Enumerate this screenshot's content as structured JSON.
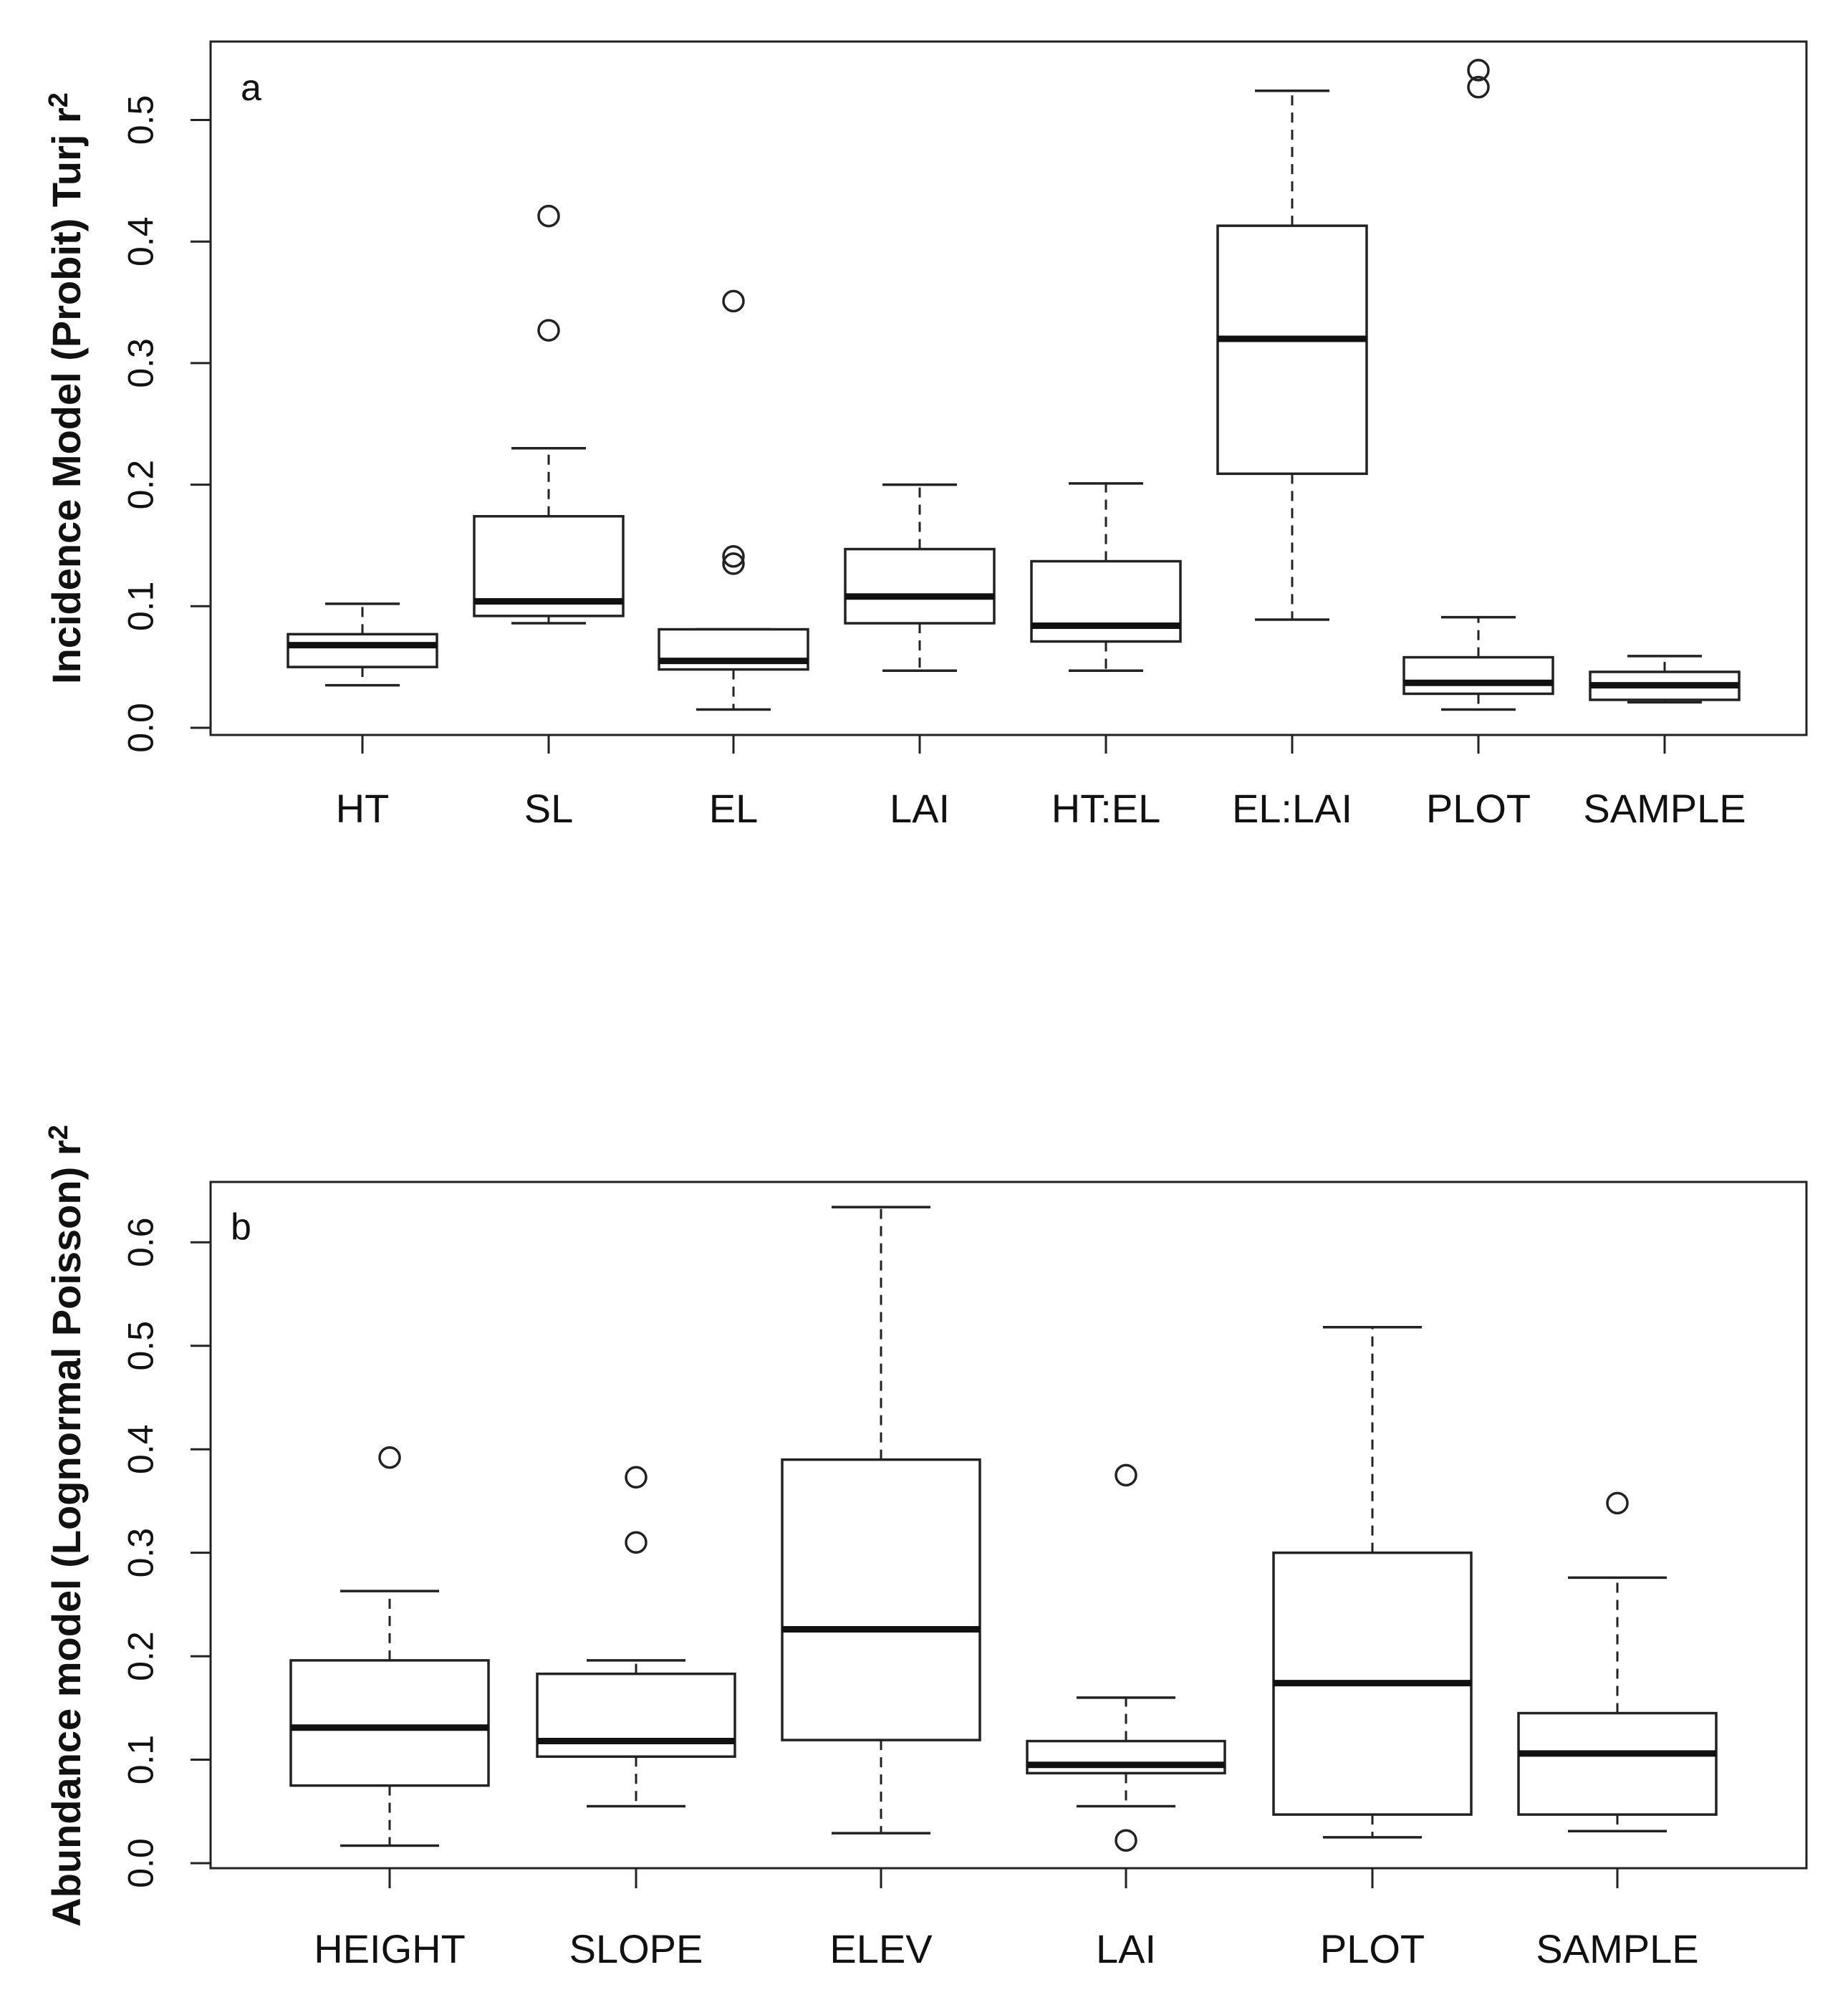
{
  "chart_data": [
    {
      "type": "boxplot",
      "panel_label": "a",
      "ylabel": "Incidence Model (Probit) Turj r",
      "ylabel_superscript": "2",
      "ylim": [
        0.0,
        0.56
      ],
      "yticks": [
        "0.0",
        "0.1",
        "0.2",
        "0.3",
        "0.4",
        "0.5"
      ],
      "categories": [
        "HT",
        "SL",
        "EL",
        "LAI",
        "HT:EL",
        "EL:LAI",
        "PLOT",
        "SAMPLE"
      ],
      "boxes": [
        {
          "min": 0.035,
          "q1": 0.05,
          "median": 0.068,
          "q3": 0.077,
          "max": 0.102,
          "outliers": []
        },
        {
          "min": 0.086,
          "q1": 0.092,
          "median": 0.104,
          "q3": 0.174,
          "max": 0.23,
          "outliers": [
            0.327,
            0.421
          ]
        },
        {
          "min": 0.015,
          "q1": 0.048,
          "median": 0.055,
          "q3": 0.081,
          "max": 0.081,
          "outliers": [
            0.135,
            0.141,
            0.351
          ]
        },
        {
          "min": 0.047,
          "q1": 0.086,
          "median": 0.108,
          "q3": 0.147,
          "max": 0.2,
          "outliers": []
        },
        {
          "min": 0.047,
          "q1": 0.071,
          "median": 0.084,
          "q3": 0.137,
          "max": 0.201,
          "outliers": []
        },
        {
          "min": 0.089,
          "q1": 0.209,
          "median": 0.32,
          "q3": 0.413,
          "max": 0.524,
          "outliers": []
        },
        {
          "min": 0.015,
          "q1": 0.028,
          "median": 0.037,
          "q3": 0.058,
          "max": 0.091,
          "outliers": [
            0.527,
            0.541
          ]
        },
        {
          "min": 0.021,
          "q1": 0.023,
          "median": 0.035,
          "q3": 0.046,
          "max": 0.059,
          "outliers": []
        }
      ]
    },
    {
      "type": "boxplot",
      "panel_label": "b",
      "ylabel": "Abundance model (Lognormal Poisson) r",
      "ylabel_superscript": "2",
      "ylim": [
        -0.005,
        0.655
      ],
      "yticks": [
        "0.0",
        "0.1",
        "0.2",
        "0.3",
        "0.4",
        "0.5",
        "0.6"
      ],
      "categories": [
        "HEIGHT",
        "SLOPE",
        "ELEV",
        "LAI",
        "PLOT",
        "SAMPLE"
      ],
      "boxes": [
        {
          "min": 0.017,
          "q1": 0.075,
          "median": 0.131,
          "q3": 0.196,
          "max": 0.263,
          "outliers": [
            0.392
          ]
        },
        {
          "min": 0.055,
          "q1": 0.103,
          "median": 0.118,
          "q3": 0.183,
          "max": 0.196,
          "outliers": [
            0.31,
            0.373
          ]
        },
        {
          "min": 0.029,
          "q1": 0.119,
          "median": 0.226,
          "q3": 0.39,
          "max": 0.634,
          "outliers": []
        },
        {
          "min": 0.055,
          "q1": 0.087,
          "median": 0.095,
          "q3": 0.118,
          "max": 0.16,
          "outliers": [
            0.022,
            0.375
          ]
        },
        {
          "min": 0.025,
          "q1": 0.047,
          "median": 0.174,
          "q3": 0.3,
          "max": 0.518,
          "outliers": []
        },
        {
          "min": 0.031,
          "q1": 0.047,
          "median": 0.106,
          "q3": 0.145,
          "max": 0.276,
          "outliers": [
            0.348
          ]
        }
      ]
    }
  ]
}
